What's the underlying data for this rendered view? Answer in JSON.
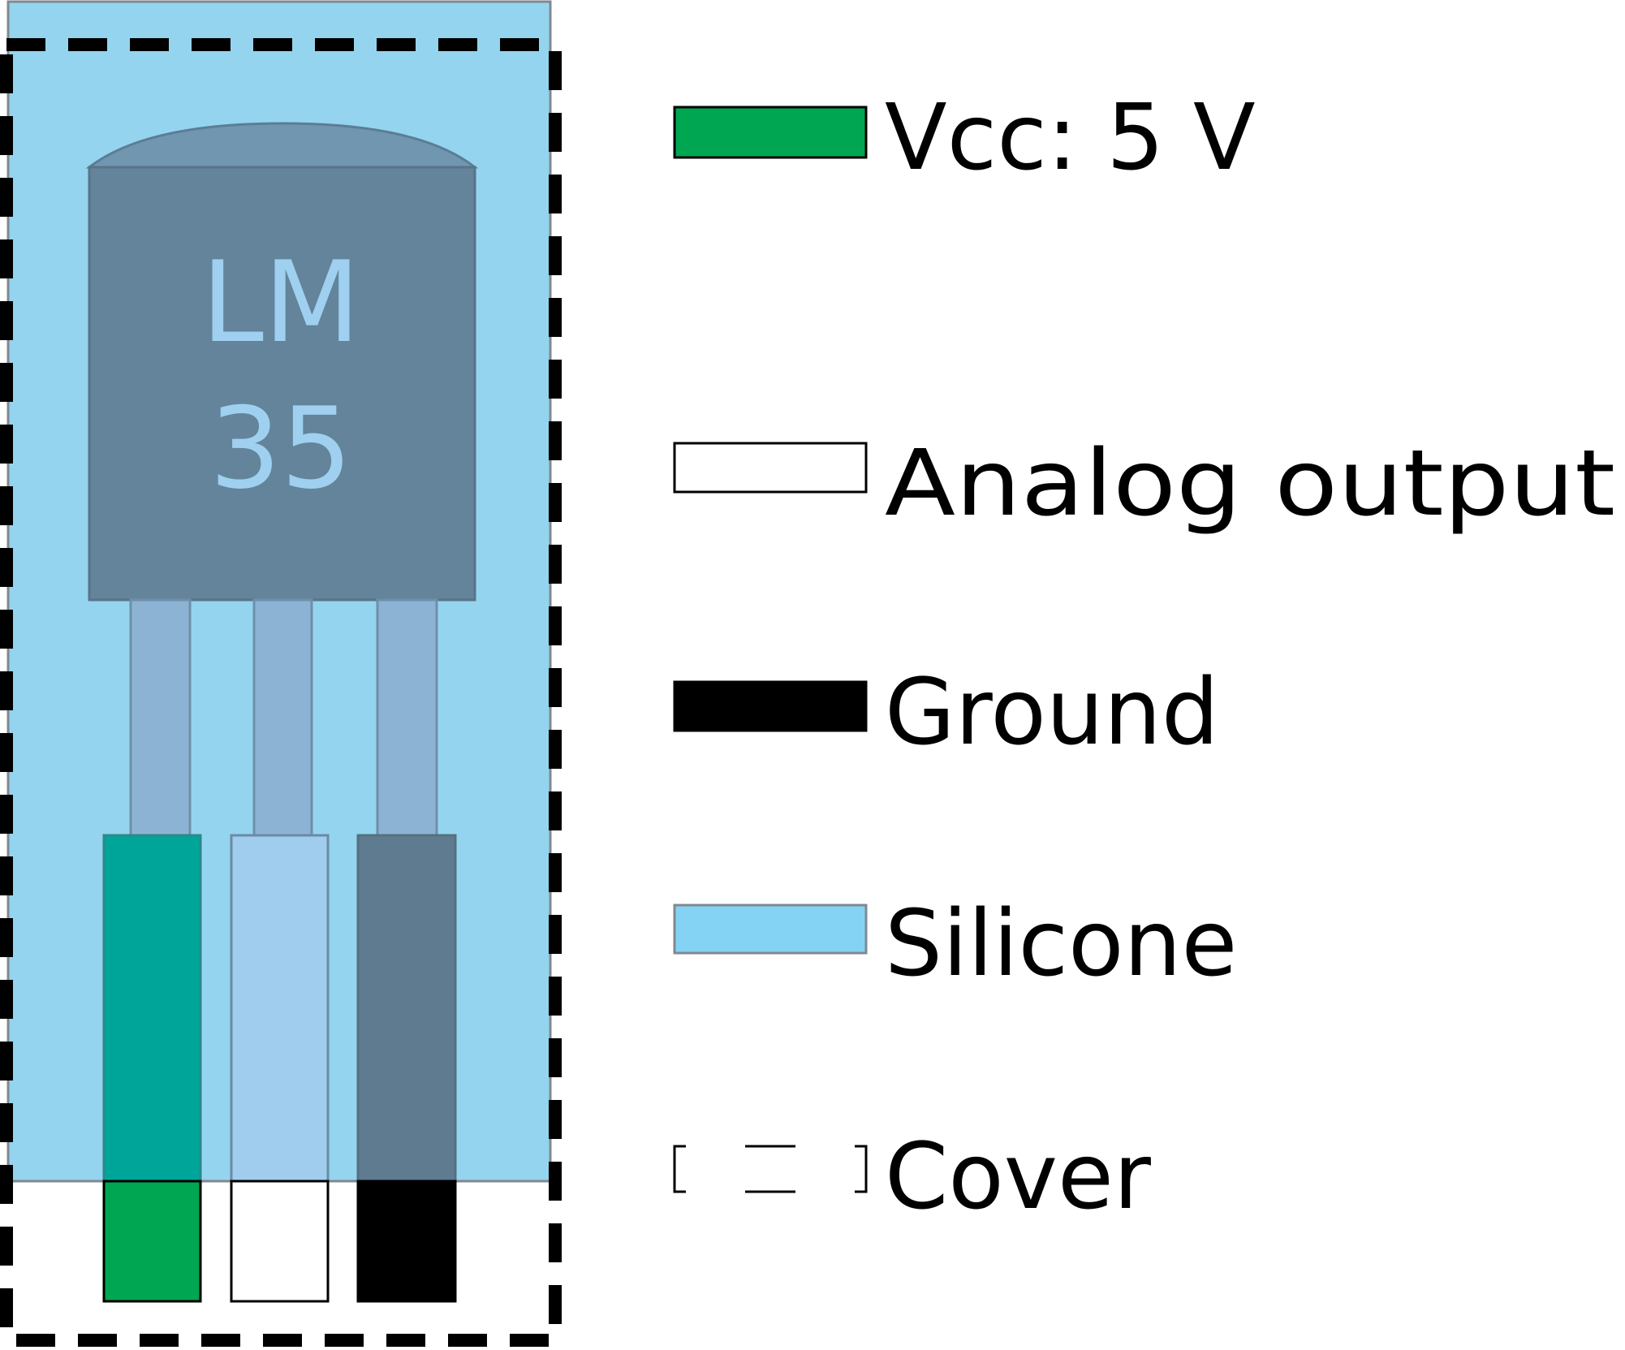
{
  "chip": {
    "line1": "LM",
    "line2": "35"
  },
  "legend": {
    "items": [
      {
        "id": "vcc",
        "label": "Vcc: 5 V",
        "color": "#00a651"
      },
      {
        "id": "analog",
        "label": "Analog output",
        "color": "#ffffff"
      },
      {
        "id": "ground",
        "label": "Ground",
        "color": "#000000"
      },
      {
        "id": "silicone",
        "label": "Silicone",
        "color": "#84d3f4"
      },
      {
        "id": "cover",
        "label": "Cover",
        "color": "none"
      }
    ]
  },
  "colors": {
    "silicone_fill": "#94d4ef",
    "chip_body": "#63849a",
    "chip_cap": "#7196b0",
    "chip_text": "#9fd0ef",
    "pin": "#8db3d4",
    "vcc_wire_in_silicone": "#00a59a",
    "analog_wire_in_silicone": "#a0cded",
    "ground_wire_in_silicone": "#5f7b90"
  }
}
